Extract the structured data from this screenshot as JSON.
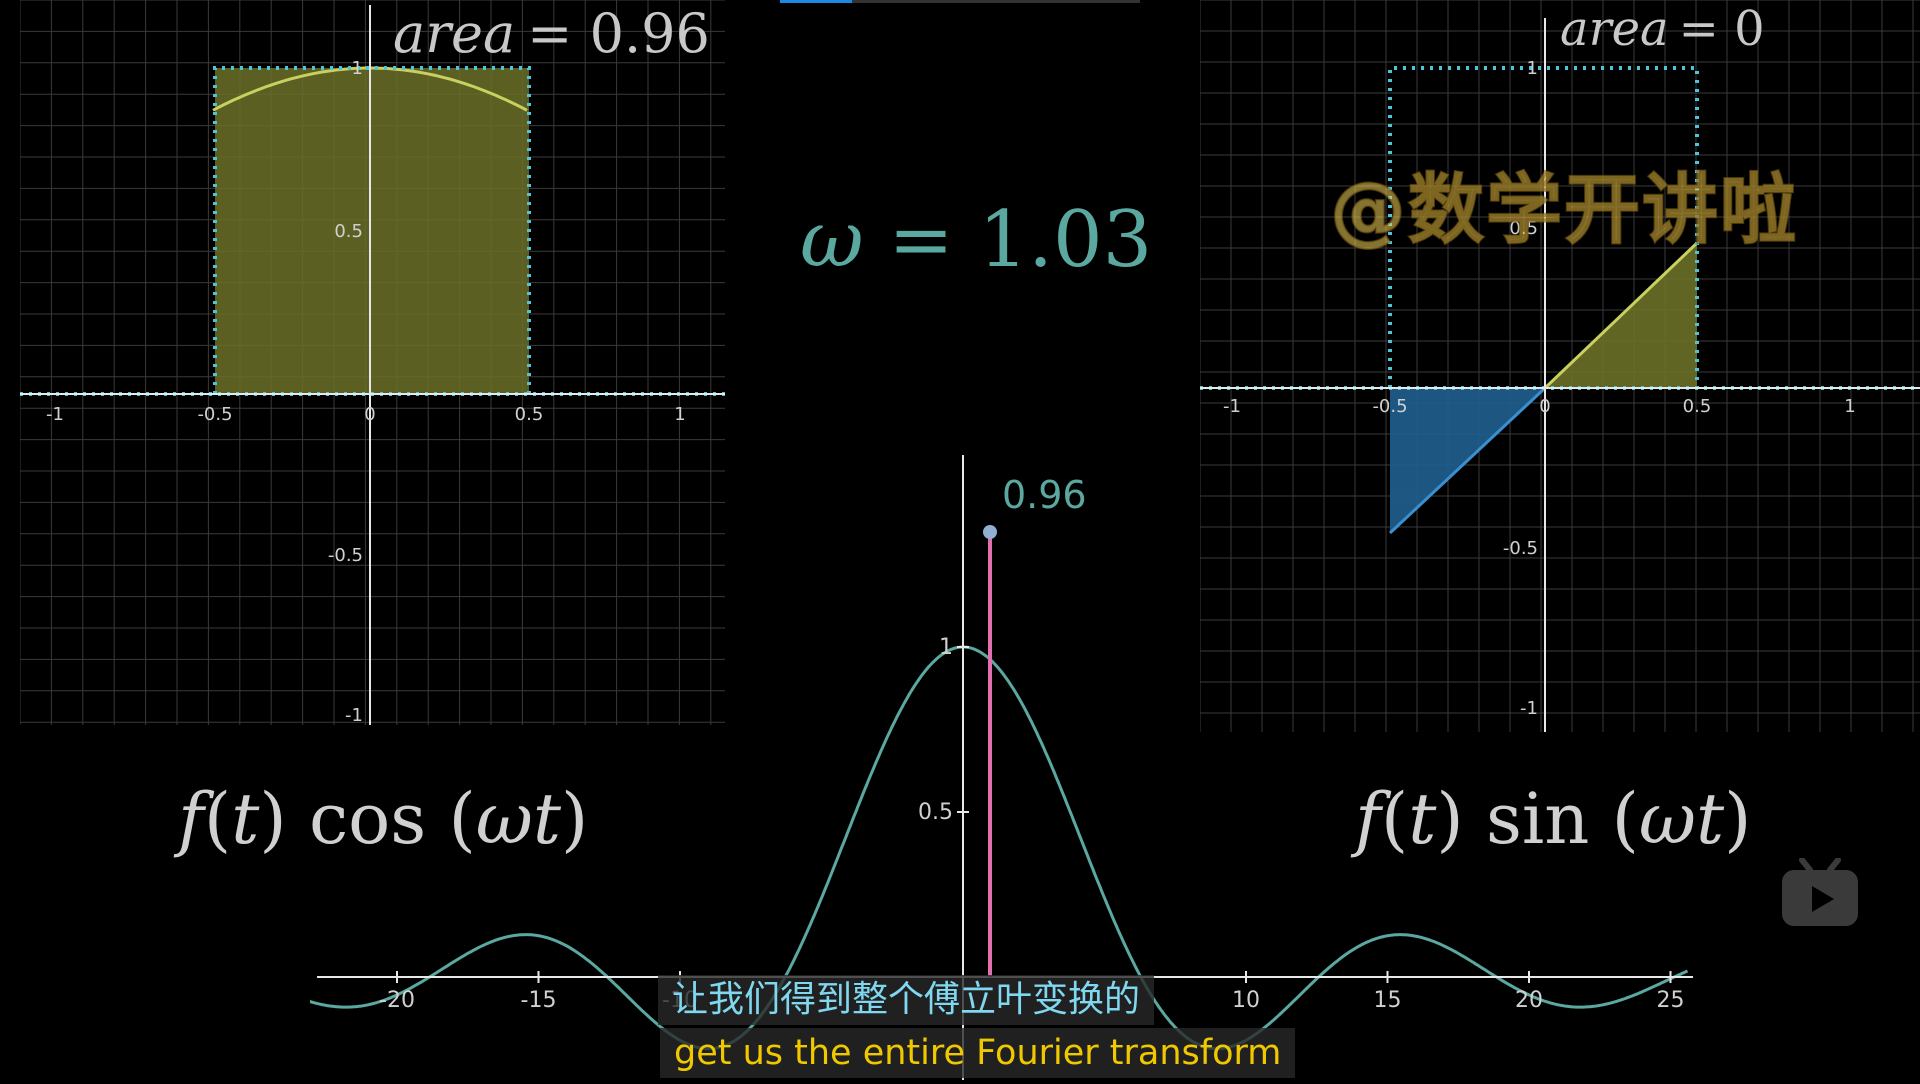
{
  "top_progress": {
    "played_fraction": 0.2
  },
  "left_panel": {
    "area_label": "area",
    "area_value": "= 0.96",
    "x_ticks": [
      "-1",
      "-0.5",
      "0",
      "0.5",
      "1"
    ],
    "y_ticks": [
      "1",
      "0.5",
      "-0.5",
      "-1"
    ]
  },
  "right_panel": {
    "area_label": "area",
    "area_value": "= 0",
    "x_ticks": [
      "-1",
      "-0.5",
      "0",
      "0.5",
      "1"
    ],
    "y_ticks": [
      "1",
      "0.5",
      "-0.5",
      "-1"
    ]
  },
  "omega": {
    "symbol": "ω",
    "equals": "= 1.03"
  },
  "center_panel": {
    "point_label": "0.96",
    "x_ticks": [
      "-20",
      "-15",
      "-10",
      "10",
      "15",
      "20",
      "25"
    ],
    "y_ticks": [
      "1",
      "0.5"
    ]
  },
  "formula_left": {
    "f": "f",
    "lp": "(",
    "t": "t",
    "rp": ")",
    "func": " cos (",
    "w": "ωt",
    "close": ")"
  },
  "formula_right": {
    "f": "f",
    "lp": "(",
    "t": "t",
    "rp": ")",
    "func": " sin (",
    "w": "ωt",
    "close": ")"
  },
  "watermark": "@数学开讲啦",
  "subtitles": {
    "zh": "让我们得到整个傅立叶变换的",
    "en": "get us the entire Fourier transform"
  },
  "colors": {
    "teal": "#5aa8a0",
    "yellow_fill": "#6b7028",
    "blue_fill": "#1f5f8f",
    "pink": "#e070b0",
    "dotted": "#4fc3d8"
  }
}
